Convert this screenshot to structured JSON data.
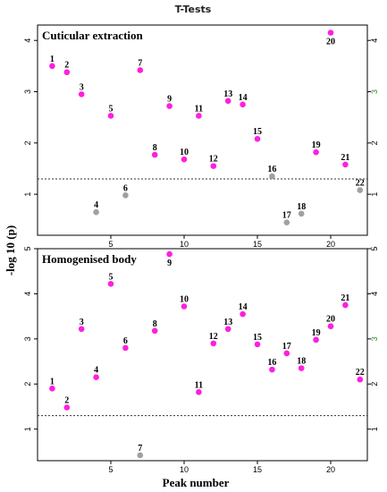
{
  "title": "T-Tests",
  "ylabel": "-log 10 (p)",
  "xlabel": "Peak number",
  "colors": {
    "significant": "#ff1ee0",
    "nonsignificant": "#a0a0a0",
    "threshold": "#333333",
    "right_tick": "#2e8b2e"
  },
  "chart_data": [
    {
      "type": "scatter",
      "title": "Cuticular extraction",
      "xlim": [
        0,
        22.5
      ],
      "ylim": [
        0.2,
        4.3
      ],
      "yticks": [
        1,
        2,
        3,
        4
      ],
      "xticks": [
        5,
        10,
        15,
        20
      ],
      "threshold": 1.3,
      "points": [
        {
          "label": "1",
          "x": 1,
          "y": 3.5,
          "significant": true
        },
        {
          "label": "2",
          "x": 2,
          "y": 3.38,
          "significant": true
        },
        {
          "label": "3",
          "x": 3,
          "y": 2.95,
          "significant": true
        },
        {
          "label": "4",
          "x": 4,
          "y": 0.65,
          "significant": false
        },
        {
          "label": "5",
          "x": 5,
          "y": 2.53,
          "significant": true
        },
        {
          "label": "6",
          "x": 6,
          "y": 0.98,
          "significant": false
        },
        {
          "label": "7",
          "x": 7,
          "y": 3.42,
          "significant": true
        },
        {
          "label": "8",
          "x": 8,
          "y": 1.77,
          "significant": true
        },
        {
          "label": "9",
          "x": 9,
          "y": 2.72,
          "significant": true
        },
        {
          "label": "10",
          "x": 10,
          "y": 1.68,
          "significant": true
        },
        {
          "label": "11",
          "x": 11,
          "y": 2.53,
          "significant": true
        },
        {
          "label": "12",
          "x": 12,
          "y": 1.55,
          "significant": true
        },
        {
          "label": "13",
          "x": 13,
          "y": 2.82,
          "significant": true
        },
        {
          "label": "14",
          "x": 14,
          "y": 2.75,
          "significant": true
        },
        {
          "label": "15",
          "x": 15,
          "y": 2.08,
          "significant": true
        },
        {
          "label": "16",
          "x": 16,
          "y": 1.35,
          "significant": false
        },
        {
          "label": "17",
          "x": 17,
          "y": 0.45,
          "significant": false
        },
        {
          "label": "18",
          "x": 18,
          "y": 0.62,
          "significant": false
        },
        {
          "label": "19",
          "x": 19,
          "y": 1.82,
          "significant": true
        },
        {
          "label": "20",
          "x": 20,
          "y": 4.15,
          "significant": true
        },
        {
          "label": "21",
          "x": 21,
          "y": 1.58,
          "significant": true
        },
        {
          "label": "22",
          "x": 22,
          "y": 1.08,
          "significant": false
        }
      ]
    },
    {
      "type": "scatter",
      "title": "Homogenised body",
      "xlim": [
        0,
        22.5
      ],
      "ylim": [
        0.3,
        5.0
      ],
      "yticks": [
        1,
        2,
        3,
        4,
        5
      ],
      "xticks": [
        5,
        10,
        15,
        20
      ],
      "threshold": 1.3,
      "points": [
        {
          "label": "1",
          "x": 1,
          "y": 1.9,
          "significant": true
        },
        {
          "label": "2",
          "x": 2,
          "y": 1.48,
          "significant": true
        },
        {
          "label": "3",
          "x": 3,
          "y": 3.22,
          "significant": true
        },
        {
          "label": "4",
          "x": 4,
          "y": 2.15,
          "significant": true
        },
        {
          "label": "5",
          "x": 5,
          "y": 4.22,
          "significant": true
        },
        {
          "label": "6",
          "x": 6,
          "y": 2.8,
          "significant": true
        },
        {
          "label": "7",
          "x": 7,
          "y": 0.42,
          "significant": false
        },
        {
          "label": "8",
          "x": 8,
          "y": 3.18,
          "significant": true
        },
        {
          "label": "9",
          "x": 9,
          "y": 4.88,
          "significant": true
        },
        {
          "label": "10",
          "x": 10,
          "y": 3.72,
          "significant": true
        },
        {
          "label": "11",
          "x": 11,
          "y": 1.82,
          "significant": true
        },
        {
          "label": "12",
          "x": 12,
          "y": 2.9,
          "significant": true
        },
        {
          "label": "13",
          "x": 13,
          "y": 3.22,
          "significant": true
        },
        {
          "label": "14",
          "x": 14,
          "y": 3.55,
          "significant": true
        },
        {
          "label": "15",
          "x": 15,
          "y": 2.88,
          "significant": true
        },
        {
          "label": "16",
          "x": 16,
          "y": 2.32,
          "significant": true
        },
        {
          "label": "17",
          "x": 17,
          "y": 2.68,
          "significant": true
        },
        {
          "label": "18",
          "x": 18,
          "y": 2.35,
          "significant": true
        },
        {
          "label": "19",
          "x": 19,
          "y": 2.98,
          "significant": true
        },
        {
          "label": "20",
          "x": 20,
          "y": 3.28,
          "significant": true
        },
        {
          "label": "21",
          "x": 21,
          "y": 3.75,
          "significant": true
        },
        {
          "label": "22",
          "x": 22,
          "y": 2.1,
          "significant": true
        }
      ]
    }
  ]
}
